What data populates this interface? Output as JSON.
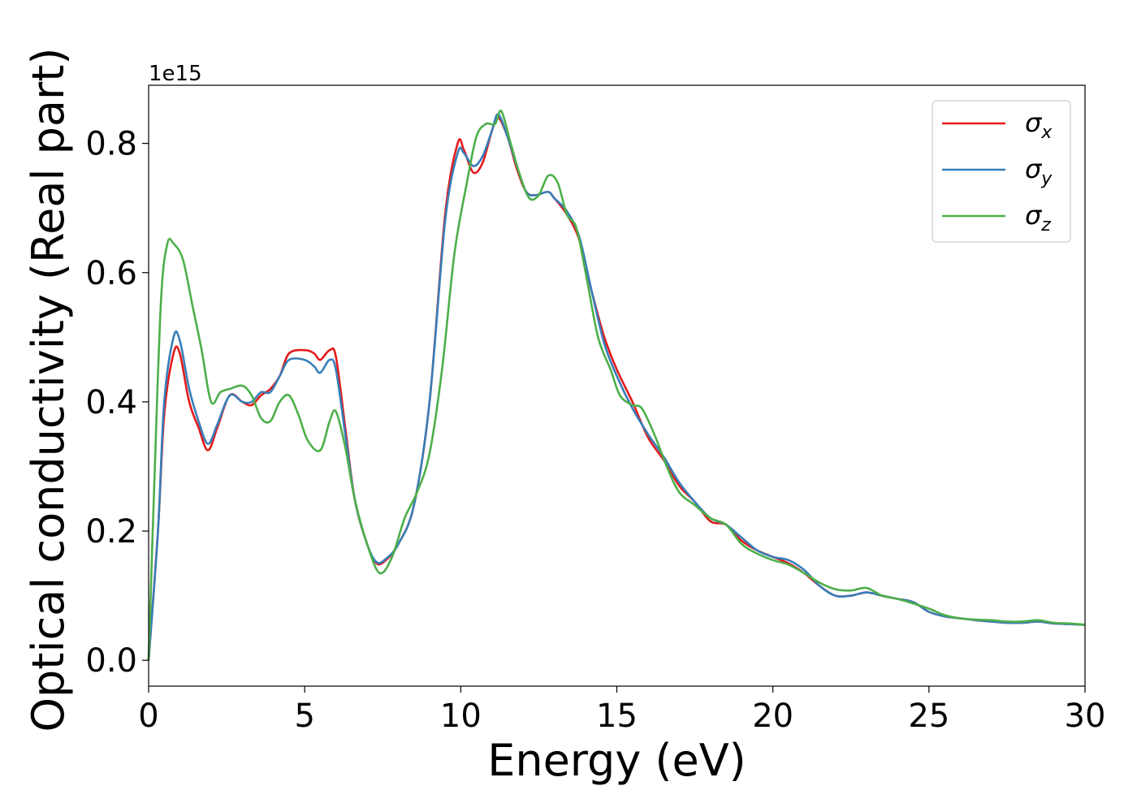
{
  "chart_data": {
    "type": "line",
    "xlabel": "Energy (eV)",
    "ylabel": "Optical conductivity (Real part)",
    "y_offset_text": "1e15",
    "xlim": [
      0,
      30
    ],
    "ylim": [
      -0.04,
      0.89
    ],
    "xticks": [
      0,
      5,
      10,
      15,
      20,
      25,
      30
    ],
    "xtick_labels": [
      "0",
      "5",
      "10",
      "15",
      "20",
      "25",
      "30"
    ],
    "yticks": [
      0.0,
      0.2,
      0.4,
      0.6,
      0.8
    ],
    "ytick_labels": [
      "0.0",
      "0.2",
      "0.4",
      "0.6",
      "0.8"
    ],
    "grid": false,
    "legend_position": "top-right",
    "series": [
      {
        "name": "σx",
        "symbol": "σ",
        "sub": "x",
        "color": "#e41a1c",
        "x": [
          0,
          0.3,
          0.5,
          0.8,
          1.0,
          1.3,
          1.6,
          1.9,
          2.2,
          2.6,
          3.0,
          3.3,
          3.6,
          3.9,
          4.2,
          4.5,
          5.0,
          5.3,
          5.5,
          5.8,
          6.0,
          6.3,
          6.6,
          7.0,
          7.3,
          7.6,
          8.0,
          8.5,
          9.0,
          9.5,
          9.9,
          10.1,
          10.4,
          10.7,
          11.0,
          11.2,
          11.5,
          11.8,
          12.1,
          12.4,
          12.8,
          13.0,
          13.4,
          13.8,
          14.2,
          14.6,
          15.0,
          15.5,
          16.0,
          16.5,
          17.0,
          17.5,
          18.0,
          18.5,
          19.0,
          19.5,
          20.0,
          20.5,
          21.0,
          21.5,
          22.0,
          22.5,
          23.0,
          23.5,
          24.0,
          24.5,
          25.0,
          25.5,
          26.0,
          26.5,
          27.0,
          27.5,
          28.0,
          28.5,
          29.0,
          29.5,
          30.0
        ],
        "y": [
          0.0,
          0.2,
          0.38,
          0.475,
          0.475,
          0.4,
          0.36,
          0.325,
          0.36,
          0.41,
          0.4,
          0.395,
          0.41,
          0.42,
          0.44,
          0.475,
          0.48,
          0.475,
          0.465,
          0.48,
          0.47,
          0.36,
          0.25,
          0.18,
          0.15,
          0.155,
          0.18,
          0.24,
          0.4,
          0.69,
          0.8,
          0.79,
          0.755,
          0.77,
          0.82,
          0.84,
          0.81,
          0.76,
          0.725,
          0.72,
          0.725,
          0.715,
          0.69,
          0.65,
          0.57,
          0.5,
          0.45,
          0.4,
          0.345,
          0.31,
          0.27,
          0.245,
          0.215,
          0.21,
          0.185,
          0.17,
          0.16,
          0.15,
          0.135,
          0.115,
          0.1,
          0.1,
          0.105,
          0.1,
          0.095,
          0.09,
          0.075,
          0.068,
          0.065,
          0.062,
          0.06,
          0.058,
          0.058,
          0.06,
          0.057,
          0.056,
          0.055
        ]
      },
      {
        "name": "σy",
        "symbol": "σ",
        "sub": "y",
        "color": "#377eb8",
        "x": [
          0,
          0.3,
          0.5,
          0.8,
          1.0,
          1.3,
          1.6,
          1.9,
          2.2,
          2.6,
          3.0,
          3.3,
          3.6,
          3.9,
          4.2,
          4.5,
          5.0,
          5.3,
          5.5,
          5.8,
          6.0,
          6.3,
          6.6,
          7.0,
          7.3,
          7.6,
          8.0,
          8.5,
          9.0,
          9.5,
          9.9,
          10.1,
          10.4,
          10.7,
          11.0,
          11.2,
          11.5,
          11.8,
          12.1,
          12.4,
          12.8,
          13.0,
          13.4,
          13.8,
          14.2,
          14.6,
          15.0,
          15.5,
          16.0,
          16.5,
          17.0,
          17.5,
          18.0,
          18.5,
          19.0,
          19.5,
          20.0,
          20.5,
          21.0,
          21.5,
          22.0,
          22.5,
          23.0,
          23.5,
          24.0,
          24.5,
          25.0,
          25.5,
          26.0,
          26.5,
          27.0,
          27.5,
          28.0,
          28.5,
          29.0,
          29.5,
          30.0
        ],
        "y": [
          0.0,
          0.2,
          0.4,
          0.5,
          0.495,
          0.42,
          0.37,
          0.335,
          0.365,
          0.41,
          0.4,
          0.4,
          0.415,
          0.415,
          0.44,
          0.465,
          0.465,
          0.455,
          0.445,
          0.465,
          0.45,
          0.35,
          0.25,
          0.18,
          0.152,
          0.157,
          0.18,
          0.24,
          0.4,
          0.68,
          0.785,
          0.785,
          0.765,
          0.78,
          0.82,
          0.845,
          0.81,
          0.765,
          0.725,
          0.72,
          0.725,
          0.715,
          0.695,
          0.655,
          0.57,
          0.49,
          0.44,
          0.39,
          0.35,
          0.315,
          0.275,
          0.245,
          0.22,
          0.21,
          0.19,
          0.17,
          0.16,
          0.155,
          0.14,
          0.115,
          0.1,
          0.1,
          0.105,
          0.1,
          0.095,
          0.09,
          0.075,
          0.068,
          0.065,
          0.062,
          0.06,
          0.058,
          0.058,
          0.06,
          0.057,
          0.056,
          0.055
        ]
      },
      {
        "name": "σz",
        "symbol": "σ",
        "sub": "z",
        "color": "#4daf4a",
        "x": [
          0,
          0.2,
          0.4,
          0.6,
          0.8,
          1.1,
          1.4,
          1.7,
          2.0,
          2.3,
          2.6,
          3.0,
          3.3,
          3.6,
          3.9,
          4.2,
          4.5,
          4.8,
          5.1,
          5.5,
          5.8,
          6.0,
          6.3,
          6.6,
          7.0,
          7.4,
          7.8,
          8.2,
          8.6,
          9.0,
          9.4,
          9.8,
          10.2,
          10.5,
          10.8,
          11.1,
          11.3,
          11.6,
          11.9,
          12.2,
          12.5,
          12.8,
          13.1,
          13.4,
          13.7,
          14.0,
          14.4,
          14.8,
          15.1,
          15.5,
          15.8,
          16.2,
          16.6,
          17.0,
          17.5,
          18.0,
          18.5,
          19.0,
          19.5,
          20.0,
          20.5,
          21.0,
          21.5,
          22.0,
          22.5,
          23.0,
          23.5,
          24.0,
          24.5,
          25.0,
          25.5,
          26.0,
          26.5,
          27.0,
          27.5,
          28.0,
          28.5,
          29.0,
          29.5,
          30.0
        ],
        "y": [
          0.0,
          0.3,
          0.56,
          0.645,
          0.645,
          0.62,
          0.55,
          0.48,
          0.4,
          0.415,
          0.42,
          0.425,
          0.41,
          0.375,
          0.37,
          0.4,
          0.41,
          0.38,
          0.34,
          0.325,
          0.37,
          0.385,
          0.33,
          0.25,
          0.18,
          0.135,
          0.16,
          0.22,
          0.26,
          0.32,
          0.45,
          0.63,
          0.74,
          0.81,
          0.83,
          0.83,
          0.85,
          0.8,
          0.75,
          0.715,
          0.72,
          0.75,
          0.74,
          0.69,
          0.67,
          0.6,
          0.5,
          0.45,
          0.41,
          0.395,
          0.39,
          0.35,
          0.3,
          0.26,
          0.24,
          0.22,
          0.21,
          0.18,
          0.165,
          0.155,
          0.148,
          0.135,
          0.12,
          0.11,
          0.108,
          0.112,
          0.1,
          0.095,
          0.088,
          0.08,
          0.07,
          0.065,
          0.063,
          0.062,
          0.06,
          0.06,
          0.062,
          0.058,
          0.057,
          0.055
        ]
      }
    ]
  }
}
